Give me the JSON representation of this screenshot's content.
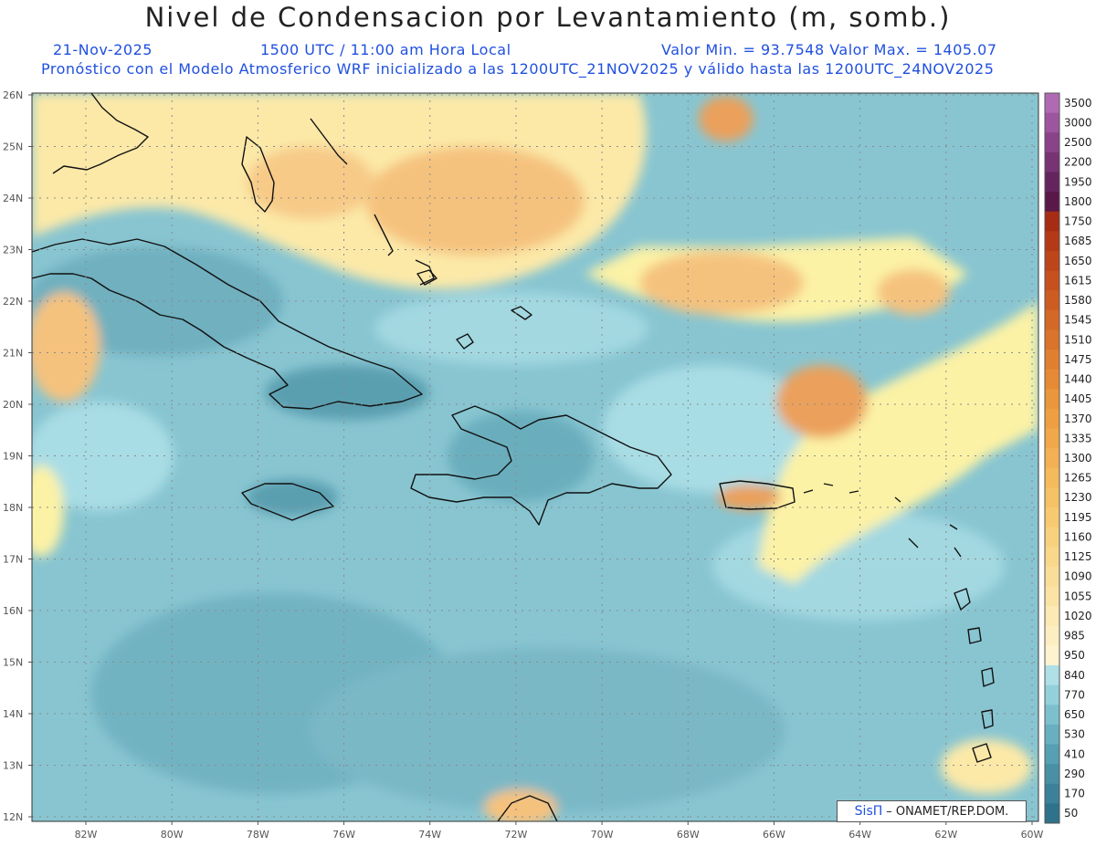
{
  "title": "Nivel de Condensacion por Levantamiento (m, somb.)",
  "header": {
    "date": "21-Nov-2025",
    "time": "1500 UTC / 11:00 am Hora Local",
    "minmax": "Valor Min. = 93.7548   Valor Max. = 1405.07",
    "model_line": "Pronóstico con el Modelo Atmosferico WRF inicializado a las 1200UTC_21NOV2025 y válido hasta las  1200UTC_24NOV2025"
  },
  "lat_labels": [
    "26N",
    "25N",
    "24N",
    "23N",
    "22N",
    "21N",
    "20N",
    "19N",
    "18N",
    "17N",
    "16N",
    "15N",
    "14N",
    "13N",
    "12N"
  ],
  "lon_labels": [
    "82W",
    "80W",
    "78W",
    "76W",
    "74W",
    "72W",
    "70W",
    "68W",
    "66W",
    "64W",
    "62W",
    "60W"
  ],
  "colorbar": {
    "labels": [
      "3500",
      "3000",
      "2500",
      "2200",
      "1950",
      "1800",
      "1750",
      "1685",
      "1650",
      "1615",
      "1580",
      "1545",
      "1510",
      "1475",
      "1440",
      "1405",
      "1370",
      "1335",
      "1300",
      "1265",
      "1230",
      "1195",
      "1160",
      "1125",
      "1090",
      "1055",
      "1020",
      "985",
      "950",
      "840",
      "770",
      "650",
      "530",
      "410",
      "290",
      "170",
      "50"
    ],
    "colors": [
      "#b06ab4",
      "#9d559f",
      "#8a4389",
      "#773373",
      "#64255e",
      "#5a1848",
      "#a62d14",
      "#b43a17",
      "#bd451a",
      "#c6511e",
      "#cd5c22",
      "#d46826",
      "#da732b",
      "#e07f30",
      "#e68a35",
      "#ea963c",
      "#ee9f42",
      "#f1a84a",
      "#f3b153",
      "#f5ba5c",
      "#f6c266",
      "#f7ca72",
      "#f8d17e",
      "#f9d78b",
      "#fadd98",
      "#fbe3a6",
      "#fce9b4",
      "#fdeec2",
      "#fef3cf",
      "#aee0e6",
      "#93d0da",
      "#7cc0ce",
      "#68b0c1",
      "#579fb3",
      "#4990a6",
      "#3c8199",
      "#2e728c"
    ]
  },
  "field_colors": {
    "deep": "#5a9fb0",
    "low": "#78b9c8",
    "mid": "#90cbd6",
    "light": "#a9dde5",
    "pale": "#fcf2a6",
    "yellow": "#fbe1a0",
    "orange": "#f5c27e",
    "dark_orange": "#eba05c",
    "coast": "#111111",
    "grid": "#8a8a8a"
  },
  "credit": {
    "brand": "SisΠ",
    "text": "– ONAMET/REP.DOM."
  }
}
